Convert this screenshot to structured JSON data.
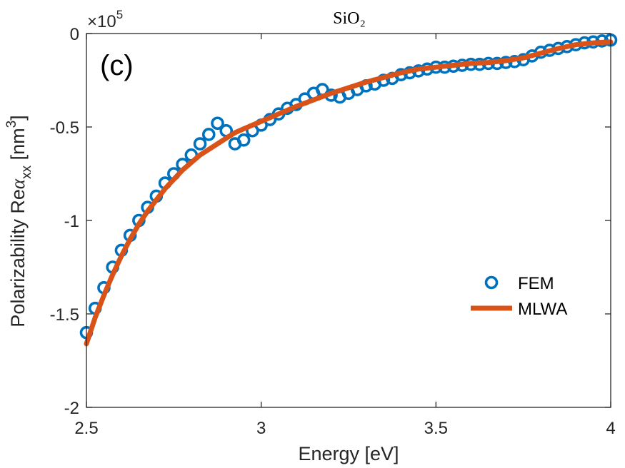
{
  "chart_data": {
    "type": "line",
    "title": "SiO₂",
    "panel_label": "(c)",
    "xlabel": "Energy [eV]",
    "ylabel": {
      "prefix": "Polarizability Re",
      "symbol": "α",
      "subscript": "xx",
      "unit_open": " [nm",
      "unit_sup": "3",
      "unit_close": "]"
    },
    "y_multiplier": {
      "base": "×10",
      "exponent": "5"
    },
    "xlim": [
      2.5,
      4.0
    ],
    "ylim": [
      -2.0,
      0.0
    ],
    "xticks": [
      2.5,
      3.0,
      3.5,
      4.0
    ],
    "xtick_labels": [
      "2.5",
      "3",
      "3.5",
      "4"
    ],
    "yticks": [
      0,
      -0.5,
      -1.0,
      -1.5,
      -2.0
    ],
    "ytick_labels": [
      "0",
      "-0.5",
      "-1",
      "-1.5",
      "-2"
    ],
    "legend_position": "right-center",
    "series": [
      {
        "name": "FEM",
        "style": "markers",
        "color": "#0072BD",
        "x": [
          2.5,
          2.525,
          2.55,
          2.575,
          2.6,
          2.625,
          2.65,
          2.675,
          2.7,
          2.725,
          2.75,
          2.775,
          2.8,
          2.825,
          2.85,
          2.875,
          2.9,
          2.925,
          2.95,
          2.975,
          3.0,
          3.025,
          3.05,
          3.075,
          3.1,
          3.125,
          3.15,
          3.175,
          3.2,
          3.225,
          3.25,
          3.275,
          3.3,
          3.325,
          3.35,
          3.375,
          3.4,
          3.425,
          3.45,
          3.475,
          3.5,
          3.525,
          3.55,
          3.575,
          3.6,
          3.625,
          3.65,
          3.675,
          3.7,
          3.725,
          3.75,
          3.775,
          3.8,
          3.825,
          3.85,
          3.875,
          3.9,
          3.925,
          3.95,
          3.975,
          4.0
        ],
        "y": [
          -1.6,
          -1.47,
          -1.36,
          -1.25,
          -1.16,
          -1.08,
          -1.0,
          -0.93,
          -0.87,
          -0.8,
          -0.75,
          -0.7,
          -0.65,
          -0.59,
          -0.54,
          -0.48,
          -0.52,
          -0.59,
          -0.57,
          -0.52,
          -0.49,
          -0.46,
          -0.43,
          -0.4,
          -0.38,
          -0.35,
          -0.32,
          -0.3,
          -0.33,
          -0.34,
          -0.32,
          -0.3,
          -0.28,
          -0.27,
          -0.25,
          -0.24,
          -0.22,
          -0.21,
          -0.2,
          -0.19,
          -0.18,
          -0.18,
          -0.175,
          -0.17,
          -0.165,
          -0.165,
          -0.16,
          -0.16,
          -0.155,
          -0.15,
          -0.14,
          -0.12,
          -0.1,
          -0.09,
          -0.08,
          -0.07,
          -0.06,
          -0.05,
          -0.045,
          -0.04,
          -0.035
        ]
      },
      {
        "name": "MLWA",
        "style": "line",
        "color": "#D95319",
        "x": [
          2.5,
          2.525,
          2.55,
          2.575,
          2.6,
          2.625,
          2.65,
          2.675,
          2.7,
          2.725,
          2.75,
          2.775,
          2.8,
          2.825,
          2.85,
          2.875,
          2.9,
          2.925,
          2.95,
          2.975,
          3.0,
          3.05,
          3.1,
          3.15,
          3.2,
          3.25,
          3.3,
          3.35,
          3.4,
          3.45,
          3.5,
          3.55,
          3.6,
          3.65,
          3.7,
          3.75,
          3.8,
          3.85,
          3.9,
          3.95,
          4.0
        ],
        "y": [
          -1.66,
          -1.52,
          -1.4,
          -1.29,
          -1.19,
          -1.1,
          -1.02,
          -0.95,
          -0.89,
          -0.83,
          -0.78,
          -0.73,
          -0.69,
          -0.65,
          -0.62,
          -0.59,
          -0.56,
          -0.53,
          -0.51,
          -0.49,
          -0.47,
          -0.43,
          -0.39,
          -0.355,
          -0.32,
          -0.29,
          -0.26,
          -0.235,
          -0.21,
          -0.19,
          -0.18,
          -0.17,
          -0.16,
          -0.155,
          -0.145,
          -0.13,
          -0.105,
          -0.08,
          -0.06,
          -0.05,
          -0.045
        ]
      }
    ]
  }
}
